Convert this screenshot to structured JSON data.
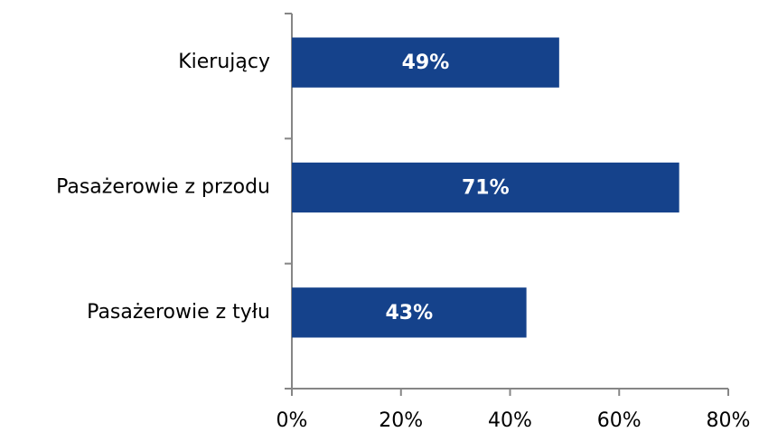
{
  "chart_data": {
    "type": "barh",
    "categories": [
      "Kierujący",
      "Pasażerowie z przodu",
      "Pasażerowie z tyłu"
    ],
    "values": [
      49,
      71,
      43
    ],
    "value_labels": [
      "49%",
      "71%",
      "43%"
    ],
    "color": "#15428b",
    "xlim": [
      0,
      80
    ],
    "xticks": [
      {
        "value": 0,
        "label": "0%"
      },
      {
        "value": 20,
        "label": "20%"
      },
      {
        "value": 40,
        "label": "40%"
      },
      {
        "value": 60,
        "label": "60%"
      },
      {
        "value": 80,
        "label": "80%"
      }
    ],
    "grid": false
  }
}
